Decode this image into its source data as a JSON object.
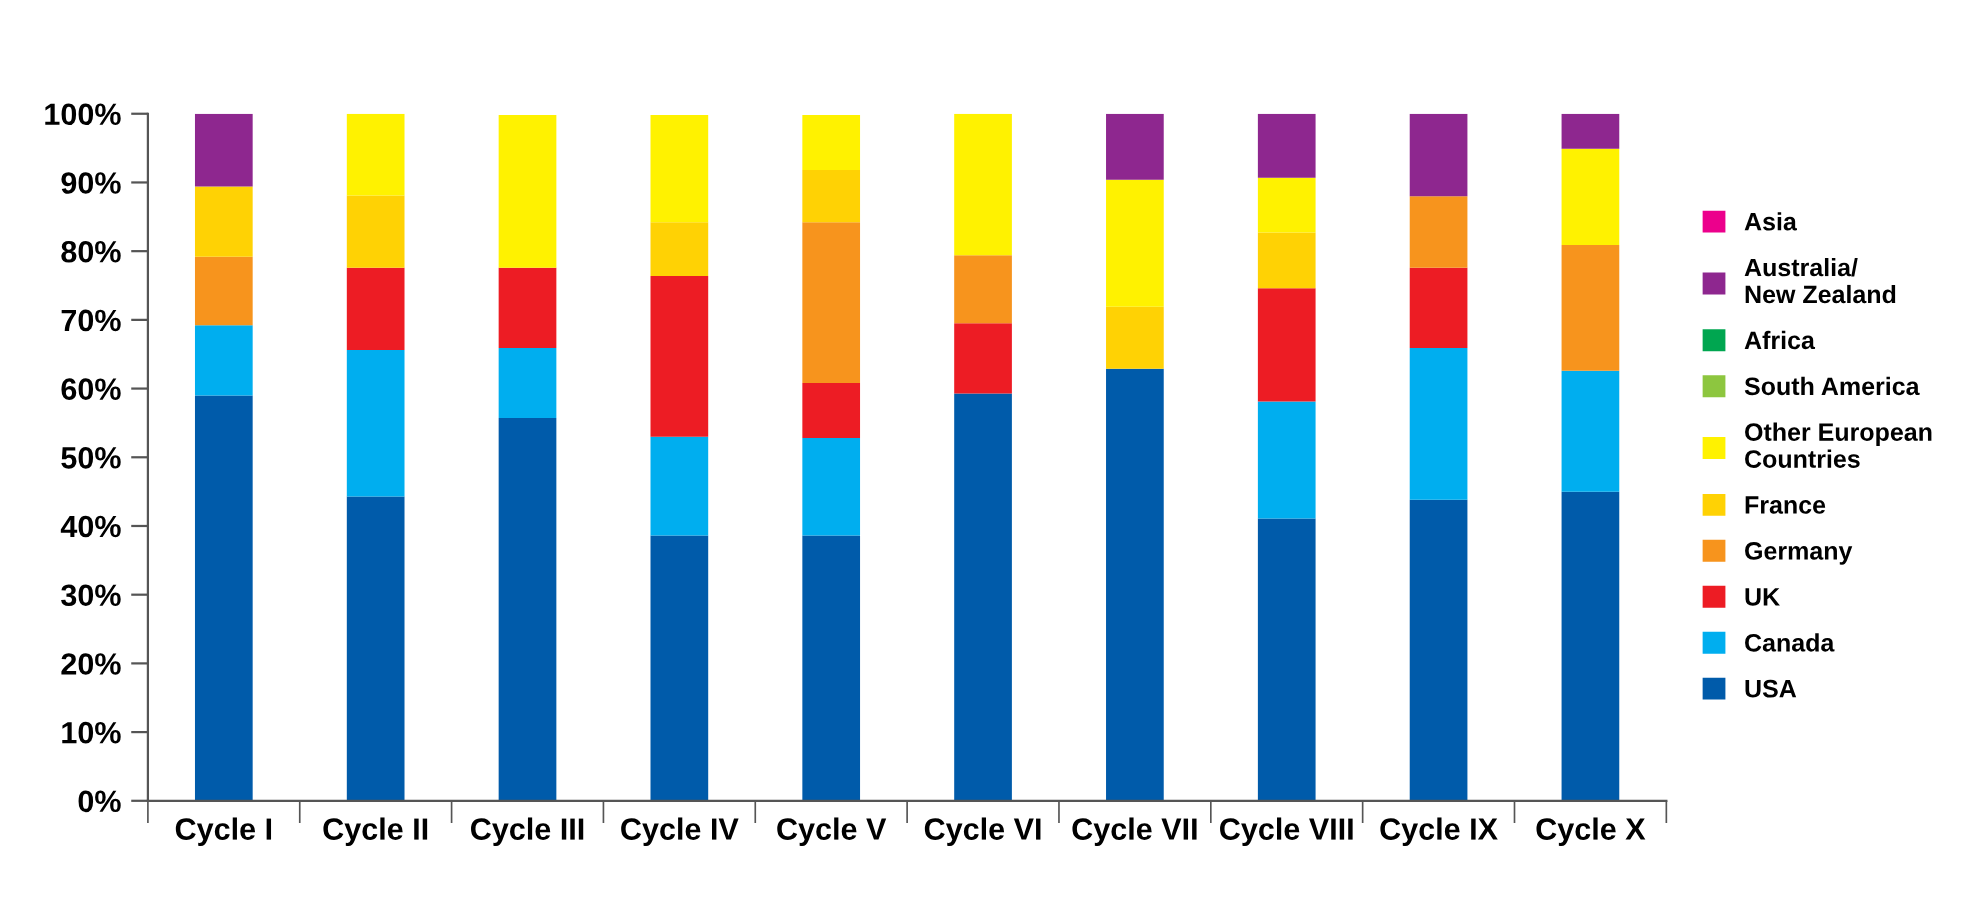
{
  "chart_data": {
    "type": "bar",
    "stacked": true,
    "categories": [
      "Cycle I",
      "Cycle II",
      "Cycle III",
      "Cycle IV",
      "Cycle V",
      "Cycle VI",
      "Cycle VII",
      "Cycle VIII",
      "Cycle IX",
      "Cycle X"
    ],
    "series": [
      {
        "name": "USA",
        "color": "#005baa",
        "values": [
          59,
          44.3,
          55.7,
          38.6,
          38.6,
          59.3,
          62.9,
          41.1,
          43.8,
          45
        ]
      },
      {
        "name": "Canada",
        "color": "#00aeef",
        "values": [
          10.2,
          21.3,
          10.2,
          14.4,
          14.2,
          0,
          0,
          17,
          22.1,
          17.6
        ]
      },
      {
        "name": "UK",
        "color": "#ed1c24",
        "values": [
          0,
          12,
          11.7,
          23.4,
          8,
          10.2,
          0,
          16.5,
          11.7,
          0
        ]
      },
      {
        "name": "Germany",
        "color": "#f7941d",
        "values": [
          10,
          0,
          0,
          0,
          23.4,
          9.9,
          0,
          0,
          10.4,
          18.3
        ]
      },
      {
        "name": "France",
        "color": "#ffd204",
        "values": [
          10.2,
          10.5,
          0,
          7.8,
          7.6,
          0,
          9,
          8.1,
          0,
          0
        ]
      },
      {
        "name": "Other European\nCountries",
        "color": "#fff200",
        "values": [
          0,
          11.9,
          22.2,
          15.6,
          8,
          20.6,
          18.5,
          8,
          0,
          14
        ]
      },
      {
        "name": "South America",
        "color": "#8dc63f",
        "values": [
          0,
          0,
          0,
          0,
          0,
          0,
          0,
          0,
          0,
          0
        ]
      },
      {
        "name": "Africa",
        "color": "#00a650",
        "values": [
          0,
          0,
          0,
          0,
          0,
          0,
          0,
          0,
          0,
          0
        ]
      },
      {
        "name": "Australia/\nNew Zealand",
        "color": "#8e278f",
        "values": [
          10.6,
          0,
          0,
          0,
          0,
          0,
          9.6,
          9.3,
          12,
          5.1
        ]
      },
      {
        "name": "Asia",
        "color": "#ec008c",
        "values": [
          0,
          0,
          0,
          0,
          0,
          0,
          0,
          0,
          0,
          0
        ]
      }
    ],
    "ylim": [
      0,
      100
    ],
    "yticks": [
      {
        "value": 0,
        "label": "0%"
      },
      {
        "value": 10,
        "label": "10%"
      },
      {
        "value": 20,
        "label": "20%"
      },
      {
        "value": 30,
        "label": "30%"
      },
      {
        "value": 40,
        "label": "40%"
      },
      {
        "value": 50,
        "label": "50%"
      },
      {
        "value": 60,
        "label": "60%"
      },
      {
        "value": 70,
        "label": "70%"
      },
      {
        "value": 80,
        "label": "80%"
      },
      {
        "value": 90,
        "label": "90%"
      },
      {
        "value": 100,
        "label": "100%"
      }
    ],
    "grid": false,
    "legend": "right"
  }
}
